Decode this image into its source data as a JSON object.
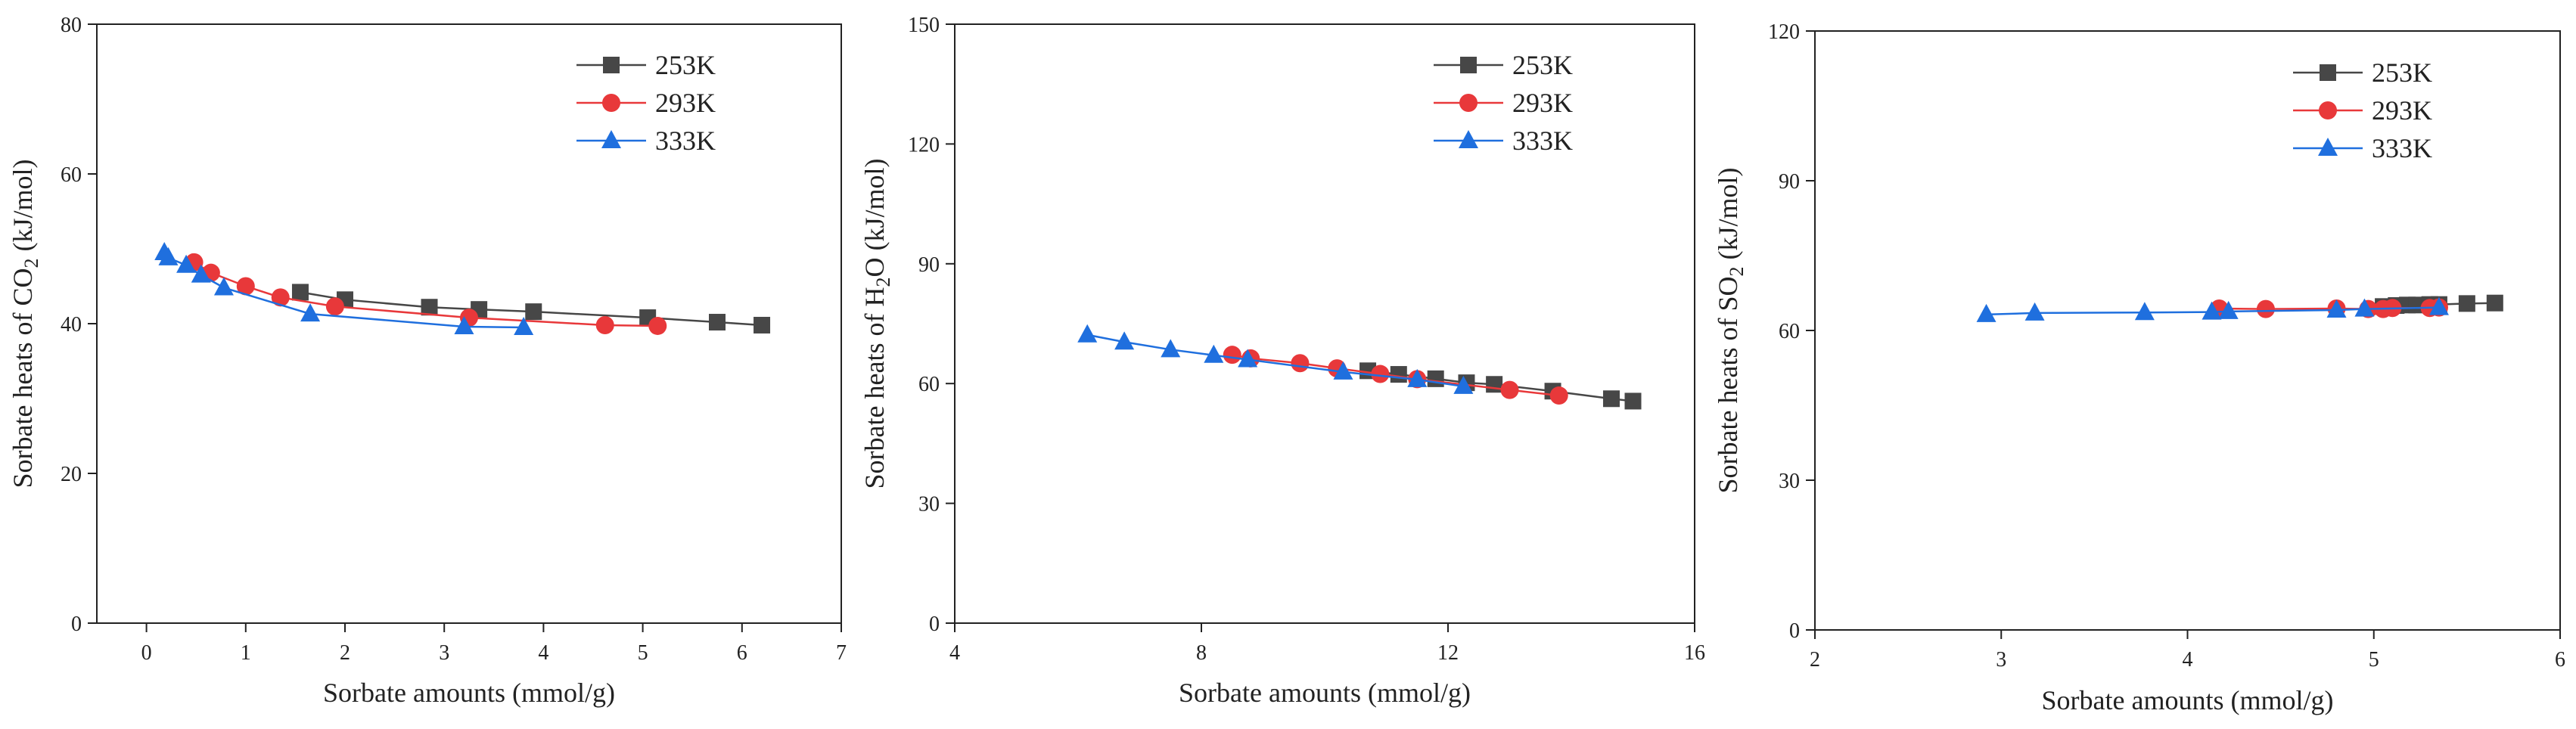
{
  "colors": {
    "253K": "#474747",
    "293K": "#e8383a",
    "333K": "#1f6fde"
  },
  "chart_data": [
    {
      "type": "line",
      "name": "co2",
      "xlabel": "Sorbate amounts (mmol/g)",
      "ylabel": {
        "pre": "Sorbate heats of CO",
        "sub": "2",
        "post": " (kJ/mol)"
      },
      "xlim": [
        -0.5,
        7
      ],
      "ylim": [
        0,
        80
      ],
      "xticks": [
        0,
        1,
        2,
        3,
        4,
        5,
        6,
        7
      ],
      "yticks": [
        0,
        20,
        40,
        60,
        80
      ],
      "legend_position": "top-right",
      "series": [
        {
          "name": "253K",
          "marker": "square",
          "x": [
            1.55,
            2.0,
            2.85,
            3.35,
            3.9,
            5.05,
            5.75,
            6.2
          ],
          "y": [
            44.2,
            43.2,
            42.2,
            41.9,
            41.6,
            40.8,
            40.2,
            39.8
          ]
        },
        {
          "name": "293K",
          "marker": "circle",
          "x": [
            0.48,
            0.65,
            1.0,
            1.35,
            1.9,
            3.25,
            4.62,
            5.15
          ],
          "y": [
            48.2,
            46.8,
            45.0,
            43.5,
            42.3,
            40.8,
            39.8,
            39.7
          ]
        },
        {
          "name": "333K",
          "marker": "triangle",
          "x": [
            0.18,
            0.22,
            0.4,
            0.55,
            0.78,
            1.65,
            3.2,
            3.8
          ],
          "y": [
            49.5,
            48.8,
            47.8,
            46.5,
            44.8,
            41.3,
            39.6,
            39.5
          ]
        }
      ]
    },
    {
      "type": "line",
      "name": "h2o",
      "xlabel": "Sorbate amounts (mmol/g)",
      "ylabel": {
        "pre": "Sorbate heats of H",
        "sub": "2",
        "post": "O (kJ/mol)"
      },
      "xlim": [
        4,
        16
      ],
      "ylim": [
        0,
        150
      ],
      "xticks": [
        4,
        8,
        12,
        16
      ],
      "yticks": [
        0,
        30,
        60,
        90,
        120,
        150
      ],
      "legend_position": "top-right",
      "series": [
        {
          "name": "253K",
          "marker": "square",
          "x": [
            10.7,
            11.2,
            11.8,
            12.3,
            12.75,
            13.7,
            14.65,
            15.0
          ],
          "y": [
            63.2,
            62.3,
            61.2,
            60.2,
            59.8,
            58.1,
            56.2,
            55.6
          ]
        },
        {
          "name": "293K",
          "marker": "circle",
          "x": [
            8.5,
            8.8,
            9.6,
            10.2,
            10.9,
            11.5,
            13.0,
            13.8
          ],
          "y": [
            67.2,
            66.3,
            65.1,
            63.8,
            62.4,
            61.1,
            58.4,
            57.0
          ]
        },
        {
          "name": "333K",
          "marker": "triangle",
          "x": [
            6.15,
            6.75,
            7.5,
            8.2,
            8.75,
            10.3,
            11.5,
            12.25
          ],
          "y": [
            72.2,
            70.4,
            68.5,
            67.1,
            66.0,
            62.9,
            61.0,
            59.3
          ]
        }
      ]
    },
    {
      "type": "line",
      "name": "so2",
      "xlabel": "Sorbate amounts (mmol/g)",
      "ylabel": {
        "pre": "Sorbate heats of SO",
        "sub": "2",
        "post": " (kJ/mol)"
      },
      "xlim": [
        2,
        6
      ],
      "ylim": [
        0,
        120
      ],
      "xticks": [
        2,
        3,
        4,
        5,
        6
      ],
      "yticks": [
        0,
        30,
        60,
        90,
        120
      ],
      "legend_position": "top-right",
      "series": [
        {
          "name": "253K",
          "marker": "square",
          "x": [
            5.05,
            5.12,
            5.18,
            5.23,
            5.3,
            5.35,
            5.5,
            5.65
          ],
          "y": [
            64.8,
            65.0,
            65.1,
            65.1,
            65.2,
            65.2,
            65.4,
            65.5
          ]
        },
        {
          "name": "293K",
          "marker": "circle",
          "x": [
            4.17,
            4.42,
            4.8,
            4.97,
            5.05,
            5.1,
            5.3,
            5.35
          ],
          "y": [
            64.4,
            64.3,
            64.4,
            64.3,
            64.3,
            64.5,
            64.5,
            64.6
          ]
        },
        {
          "name": "333K",
          "marker": "triangle",
          "x": [
            2.92,
            3.18,
            3.77,
            4.13,
            4.22,
            4.8,
            4.95,
            5.35
          ],
          "y": [
            63.2,
            63.5,
            63.6,
            63.7,
            63.8,
            64.1,
            64.3,
            64.6
          ]
        }
      ]
    }
  ]
}
